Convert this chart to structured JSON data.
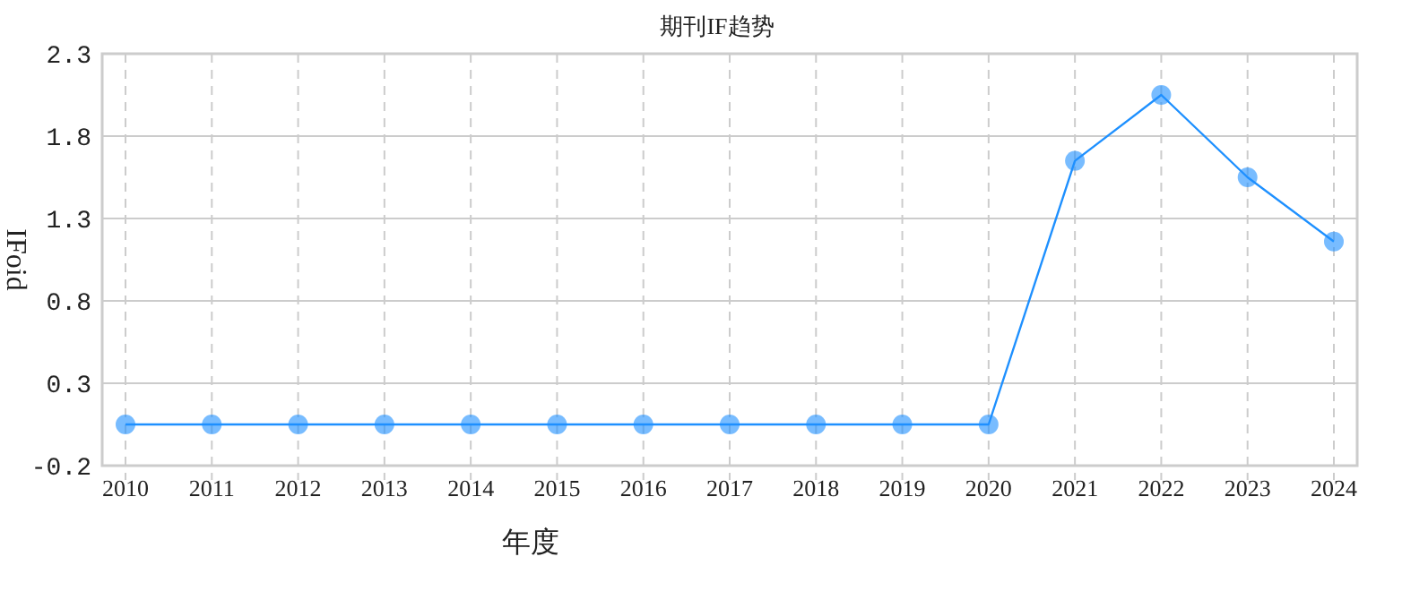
{
  "chart_data": {
    "type": "line",
    "title": "期刊IF趋势",
    "xlabel": "年度",
    "ylabel": "IFoid",
    "categories": [
      "2010",
      "2011",
      "2012",
      "2013",
      "2014",
      "2015",
      "2016",
      "2017",
      "2018",
      "2019",
      "2020",
      "2021",
      "2022",
      "2023",
      "2024"
    ],
    "series": [
      {
        "color": "#1e90ff",
        "values": [
          0.05,
          0.05,
          0.05,
          0.05,
          0.05,
          0.05,
          0.05,
          0.05,
          0.05,
          0.05,
          0.05,
          1.65,
          2.05,
          1.55,
          1.16
        ]
      }
    ],
    "ylim": [
      -0.2,
      2.3
    ],
    "yticks": [
      -0.2,
      0.3,
      0.8,
      1.3,
      1.8,
      2.3
    ],
    "grid": true,
    "marker": "circle"
  }
}
